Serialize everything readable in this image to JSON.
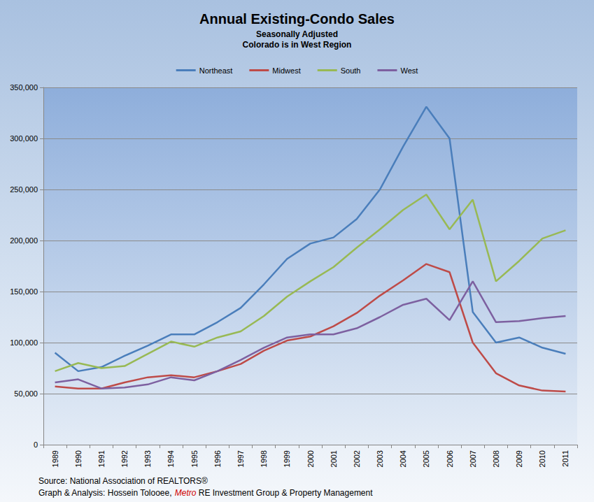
{
  "chart_data": {
    "type": "line",
    "title": "Annual Existing-Condo Sales",
    "subtitle": [
      "Seasonally Adjusted",
      "Colorado is in West Region"
    ],
    "source": "Source: National Association of REALTORS®",
    "credit": [
      "Graph & Analysis: Hossein Tolooee, ",
      "Metro",
      " RE Investment Group & Property Management"
    ],
    "categories": [
      "1989",
      "1990",
      "1991",
      "1992",
      "1993",
      "1994",
      "1995",
      "1996",
      "1997",
      "1998",
      "1999",
      "2000",
      "2001",
      "2002",
      "2003",
      "2004",
      "2005",
      "2006",
      "2007",
      "2008",
      "2009",
      "2010",
      "2011"
    ],
    "series": [
      {
        "name": "Northeast",
        "color": "#4a7ebb",
        "values": [
          90000,
          72000,
          76000,
          87000,
          97000,
          108000,
          108000,
          120000,
          134000,
          157000,
          182000,
          197000,
          203000,
          221000,
          250000,
          292000,
          331000,
          300000,
          130000,
          100000,
          105000,
          95000,
          89000
        ]
      },
      {
        "name": "Midwest",
        "color": "#be4b48",
        "values": [
          57000,
          55000,
          55000,
          61000,
          66000,
          68000,
          66000,
          72000,
          79000,
          92000,
          102000,
          106000,
          116000,
          129000,
          146000,
          161000,
          177000,
          169000,
          100000,
          70000,
          58000,
          53000,
          52000
        ]
      },
      {
        "name": "South",
        "color": "#98b954",
        "values": [
          72000,
          80000,
          75000,
          77000,
          89000,
          101000,
          96000,
          105000,
          111000,
          126000,
          145000,
          160000,
          174000,
          193000,
          211000,
          230000,
          245000,
          211000,
          240000,
          160000,
          180000,
          202000,
          210000
        ]
      },
      {
        "name": "West",
        "color": "#7d60a0",
        "values": [
          61000,
          64000,
          55000,
          56000,
          59000,
          66000,
          63000,
          72000,
          83000,
          95000,
          105000,
          108000,
          108000,
          114000,
          125000,
          137000,
          143000,
          122000,
          160000,
          120000,
          121000,
          124000,
          126000
        ]
      }
    ],
    "ylim": [
      0,
      350000
    ],
    "yticks": [
      0,
      {
        "value": 50000,
        "label": "50,000"
      },
      {
        "value": 100000,
        "label": "100,000"
      },
      {
        "value": 150000,
        "label": "150,000"
      },
      {
        "value": 200000,
        "label": "200,000"
      },
      {
        "value": 250000,
        "label": "250,000"
      },
      {
        "value": 300000,
        "label": "300,000"
      },
      {
        "value": 350000,
        "label": "350,000"
      }
    ],
    "grid": true,
    "legend": "top"
  }
}
